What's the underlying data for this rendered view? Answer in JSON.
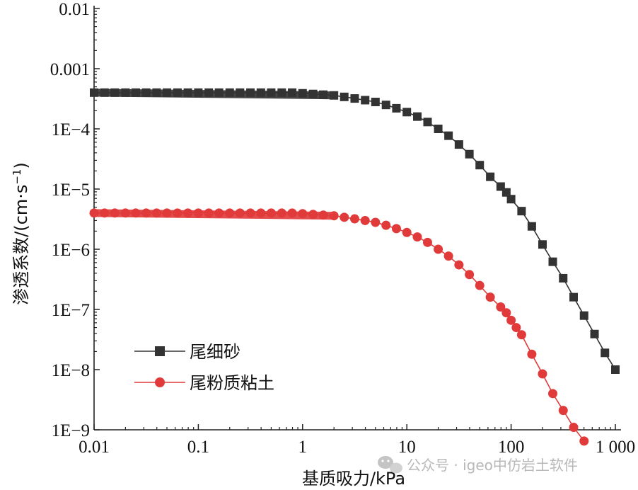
{
  "chart_data": {
    "type": "line",
    "title": "",
    "xlabel": "基质吸力/kPa",
    "ylabel": "渗透系数/(cm·s",
    "ylabel_sup": "−1",
    "ylabel_close": ")",
    "x_scale": "log",
    "y_scale": "log",
    "xlim": [
      0.01,
      1000
    ],
    "ylim": [
      1e-09,
      0.01
    ],
    "x_ticks": [
      {
        "value": 0.01,
        "label": "0.01"
      },
      {
        "value": 0.1,
        "label": "0.1"
      },
      {
        "value": 1,
        "label": "1"
      },
      {
        "value": 10,
        "label": "10"
      },
      {
        "value": 100,
        "label": "100"
      },
      {
        "value": 1000,
        "label": "1 000"
      }
    ],
    "y_ticks": [
      {
        "value": 0.01,
        "label": "0.01"
      },
      {
        "value": 0.001,
        "label": "0.001"
      },
      {
        "value": 0.0001,
        "label": "1E−4"
      },
      {
        "value": 1e-05,
        "label": "1E−5"
      },
      {
        "value": 1e-06,
        "label": "1E−6"
      },
      {
        "value": 1e-07,
        "label": "1E−7"
      },
      {
        "value": 1e-08,
        "label": "1E−8"
      },
      {
        "value": 1e-09,
        "label": "1E−9"
      }
    ],
    "grid": false,
    "legend_position": "bottom-left",
    "series": [
      {
        "name": "尾细砂",
        "color": "#333333",
        "marker": "square",
        "k_sat": 0.0004,
        "x": [
          0.01,
          0.0126,
          0.0158,
          0.02,
          0.0251,
          0.0316,
          0.0398,
          0.05,
          0.0631,
          0.0794,
          0.1,
          0.126,
          0.158,
          0.2,
          0.251,
          0.316,
          0.398,
          0.5,
          0.631,
          0.794,
          1,
          1.26,
          1.58,
          2,
          2.51,
          3.16,
          3.98,
          5,
          6.31,
          7.94,
          10,
          12.6,
          15.8,
          20,
          25.1,
          31.6,
          39.8,
          50,
          63.1,
          79.4,
          90,
          100,
          126,
          158,
          200,
          251,
          316,
          398,
          501,
          631,
          794,
          1000
        ],
        "y": [
          0.0004,
          0.0004,
          0.0004,
          0.0004,
          0.0004,
          0.0004,
          0.0004,
          0.0004,
          0.0004,
          0.0004,
          0.0004,
          0.0004,
          0.0004,
          0.0004,
          0.0004,
          0.0004,
          0.0004,
          0.0004,
          0.0004,
          0.0004,
          0.00039,
          0.00038,
          0.00037,
          0.00036,
          0.00034,
          0.00032,
          0.0003,
          0.00028,
          0.00025,
          0.00022,
          0.00019,
          0.00016,
          0.00013,
          0.0001,
          7.7e-05,
          5.5e-05,
          3.8e-05,
          2.5e-05,
          1.6e-05,
          1.1e-05,
          8.8e-06,
          6.8e-06,
          4.3e-06,
          2.4e-06,
          1.2e-06,
          6.2e-07,
          3.3e-07,
          1.6e-07,
          7.9e-08,
          3.9e-08,
          1.9e-08,
          1e-08
        ]
      },
      {
        "name": "尾粉质粘土",
        "color": "#e03a3a",
        "marker": "circle",
        "k_sat": 4e-06,
        "x": [
          0.01,
          0.0126,
          0.0158,
          0.02,
          0.0251,
          0.0316,
          0.0398,
          0.05,
          0.0631,
          0.0794,
          0.1,
          0.126,
          0.158,
          0.2,
          0.251,
          0.316,
          0.398,
          0.5,
          0.631,
          0.794,
          1,
          1.26,
          1.58,
          2,
          2.51,
          3.16,
          3.98,
          5,
          6.31,
          7.94,
          10,
          12.6,
          15.8,
          20,
          25.1,
          31.6,
          39.8,
          50,
          63.1,
          79.4,
          90,
          100,
          112,
          126,
          158,
          200,
          251,
          316,
          398,
          501
        ],
        "y": [
          4e-06,
          4e-06,
          4e-06,
          4e-06,
          4e-06,
          4e-06,
          4e-06,
          4e-06,
          4e-06,
          4e-06,
          4e-06,
          4e-06,
          4e-06,
          4e-06,
          4e-06,
          4e-06,
          4e-06,
          4e-06,
          4e-06,
          4e-06,
          3.9e-06,
          3.8e-06,
          3.7e-06,
          3.6e-06,
          3.4e-06,
          3.2e-06,
          3e-06,
          2.8e-06,
          2.5e-06,
          2.2e-06,
          1.9e-06,
          1.6e-06,
          1.3e-06,
          1e-06,
          7.7e-07,
          5.5e-07,
          3.8e-07,
          2.5e-07,
          1.6e-07,
          1.1e-07,
          8.8e-08,
          6.6e-08,
          5e-08,
          3.8e-08,
          1.8e-08,
          8.5e-09,
          4e-09,
          2.1e-09,
          1.1e-09,
          6.5e-10
        ]
      }
    ]
  },
  "watermark": {
    "text": "公众号 · igeo中仿岩土软件"
  }
}
